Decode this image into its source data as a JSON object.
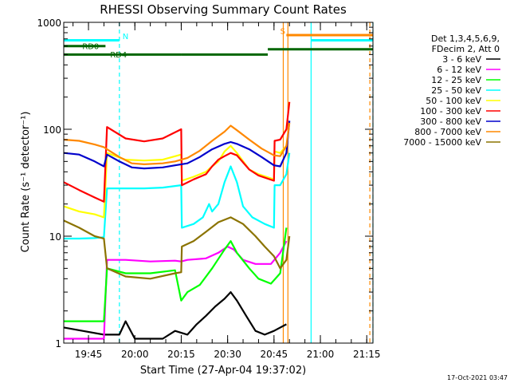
{
  "chart_data": {
    "type": "line",
    "title": "RHESSI Observing Summary Count Rates",
    "xlabel": "Start Time (27-Apr-04 19:37:02)",
    "ylabel": "Count Rate (s⁻¹ detector⁻¹)",
    "xlim_minutes": [
      0,
      100
    ],
    "ylim": [
      1,
      1000
    ],
    "yscale": "log",
    "grid": false,
    "legend_position": "right",
    "x_ticks": [
      {
        "minute": 8,
        "label": "19:45"
      },
      {
        "minute": 23,
        "label": "20:00"
      },
      {
        "minute": 38,
        "label": "20:15"
      },
      {
        "minute": 53,
        "label": "20:30"
      },
      {
        "minute": 68,
        "label": "20:45"
      },
      {
        "minute": 83,
        "label": "21:00"
      },
      {
        "minute": 98,
        "label": "21:15"
      }
    ],
    "y_ticks": [
      {
        "value": 1,
        "label": "1"
      },
      {
        "value": 10,
        "label": "10"
      },
      {
        "value": 100,
        "label": "100"
      },
      {
        "value": 1000,
        "label": "1000"
      }
    ],
    "legend_header": [
      "Det 1,3,4,5,6,9,",
      "FDecim 2, Att 0"
    ],
    "footer_date": "17-Oct-2021 03:47",
    "series": [
      {
        "name": "3 - 6 keV",
        "color": "#000000",
        "points": [
          [
            0,
            1.4
          ],
          [
            13,
            1.2
          ],
          [
            18,
            1.2
          ],
          [
            20,
            1.6
          ],
          [
            23,
            1.1
          ],
          [
            32,
            1.1
          ],
          [
            36,
            1.3
          ],
          [
            40,
            1.2
          ],
          [
            43,
            1.5
          ],
          [
            46,
            1.8
          ],
          [
            49,
            2.2
          ],
          [
            52,
            2.6
          ],
          [
            54,
            3.0
          ],
          [
            56,
            2.5
          ],
          [
            59,
            1.8
          ],
          [
            62,
            1.3
          ],
          [
            65,
            1.2
          ],
          [
            68,
            1.3
          ],
          [
            72,
            1.5
          ]
        ]
      },
      {
        "name": "6 - 12 keV",
        "color": "#ff00ff",
        "points": [
          [
            0,
            1.1
          ],
          [
            13,
            1.1
          ],
          [
            14,
            6.0
          ],
          [
            20,
            6.0
          ],
          [
            28,
            5.8
          ],
          [
            36,
            5.9
          ],
          [
            38,
            5.8
          ],
          [
            40,
            6.0
          ],
          [
            46,
            6.2
          ],
          [
            50,
            7.0
          ],
          [
            53,
            8.0
          ],
          [
            55,
            7.5
          ],
          [
            58,
            6.0
          ],
          [
            62,
            5.5
          ],
          [
            67,
            5.5
          ],
          [
            70,
            7.0
          ],
          [
            72,
            9.0
          ]
        ]
      },
      {
        "name": "12 - 25 keV",
        "color": "#00ff00",
        "points": [
          [
            0,
            1.6
          ],
          [
            13,
            1.6
          ],
          [
            14,
            5.0
          ],
          [
            20,
            4.5
          ],
          [
            28,
            4.5
          ],
          [
            36,
            4.8
          ],
          [
            38,
            2.5
          ],
          [
            40,
            3.0
          ],
          [
            44,
            3.5
          ],
          [
            48,
            5.0
          ],
          [
            52,
            7.5
          ],
          [
            54,
            9.0
          ],
          [
            56,
            7.0
          ],
          [
            60,
            5.0
          ],
          [
            63,
            4.0
          ],
          [
            67,
            3.6
          ],
          [
            70,
            4.5
          ],
          [
            72,
            12
          ]
        ]
      },
      {
        "name": "25 - 50 keV",
        "color": "#00ffff",
        "points": [
          [
            0,
            9.5
          ],
          [
            5,
            9.5
          ],
          [
            10,
            9.6
          ],
          [
            13,
            9.8
          ],
          [
            14,
            28
          ],
          [
            20,
            28
          ],
          [
            26,
            28
          ],
          [
            32,
            28.5
          ],
          [
            38,
            30
          ],
          [
            38.2,
            12
          ],
          [
            42,
            13
          ],
          [
            45,
            15
          ],
          [
            47,
            20
          ],
          [
            48,
            17
          ],
          [
            50,
            20
          ],
          [
            52,
            32
          ],
          [
            54,
            45
          ],
          [
            56,
            32
          ],
          [
            58,
            19
          ],
          [
            61,
            15
          ],
          [
            65,
            13
          ],
          [
            68,
            12
          ],
          [
            68.2,
            30
          ],
          [
            70,
            30
          ],
          [
            72,
            38
          ],
          [
            73,
            60
          ]
        ]
      },
      {
        "name": "50 - 100 keV",
        "color": "#ffff00",
        "points": [
          [
            0,
            19
          ],
          [
            5,
            17
          ],
          [
            10,
            16
          ],
          [
            13,
            15
          ],
          [
            14,
            60
          ],
          [
            20,
            52
          ],
          [
            26,
            51
          ],
          [
            32,
            52
          ],
          [
            38,
            58
          ],
          [
            38.2,
            33
          ],
          [
            42,
            36
          ],
          [
            46,
            40
          ],
          [
            48,
            45
          ],
          [
            50,
            50
          ],
          [
            52,
            62
          ],
          [
            54,
            70
          ],
          [
            56,
            60
          ],
          [
            60,
            42
          ],
          [
            63,
            38
          ],
          [
            68,
            34
          ],
          [
            68.2,
            62
          ],
          [
            70,
            60
          ],
          [
            72,
            70
          ]
        ]
      },
      {
        "name": "100 - 300 keV",
        "color": "#ff0000",
        "points": [
          [
            0,
            32
          ],
          [
            5,
            27
          ],
          [
            10,
            23
          ],
          [
            13,
            21
          ],
          [
            14,
            105
          ],
          [
            20,
            82
          ],
          [
            26,
            77
          ],
          [
            32,
            82
          ],
          [
            38,
            100
          ],
          [
            38.2,
            30
          ],
          [
            42,
            34
          ],
          [
            46,
            38
          ],
          [
            48,
            45
          ],
          [
            50,
            52
          ],
          [
            52,
            56
          ],
          [
            54,
            60
          ],
          [
            56,
            57
          ],
          [
            60,
            42
          ],
          [
            63,
            37
          ],
          [
            68,
            33
          ],
          [
            68.2,
            78
          ],
          [
            70,
            80
          ],
          [
            72,
            100
          ],
          [
            73,
            180
          ]
        ]
      },
      {
        "name": "300 - 800 keV",
        "color": "#0000cc",
        "points": [
          [
            0,
            60
          ],
          [
            5,
            58
          ],
          [
            10,
            50
          ],
          [
            13,
            45
          ],
          [
            14,
            58
          ],
          [
            18,
            50
          ],
          [
            22,
            44
          ],
          [
            26,
            43
          ],
          [
            32,
            44
          ],
          [
            36,
            46
          ],
          [
            40,
            48
          ],
          [
            44,
            55
          ],
          [
            48,
            65
          ],
          [
            52,
            73
          ],
          [
            54,
            76
          ],
          [
            56,
            73
          ],
          [
            60,
            65
          ],
          [
            64,
            55
          ],
          [
            68,
            46
          ],
          [
            70,
            45
          ],
          [
            72,
            60
          ],
          [
            73,
            120
          ]
        ]
      },
      {
        "name": "800 - 7000 keV",
        "color": "#ff8800",
        "points": [
          [
            0,
            80
          ],
          [
            5,
            78
          ],
          [
            10,
            72
          ],
          [
            13,
            68
          ],
          [
            14,
            65
          ],
          [
            18,
            55
          ],
          [
            22,
            48
          ],
          [
            26,
            47
          ],
          [
            32,
            48
          ],
          [
            36,
            50
          ],
          [
            40,
            54
          ],
          [
            44,
            63
          ],
          [
            48,
            78
          ],
          [
            52,
            95
          ],
          [
            54,
            108
          ],
          [
            56,
            98
          ],
          [
            60,
            80
          ],
          [
            64,
            66
          ],
          [
            68,
            57
          ],
          [
            70,
            56
          ],
          [
            72,
            70
          ],
          [
            73,
            115
          ]
        ]
      },
      {
        "name": "7000 - 15000 keV",
        "color": "#8b7300",
        "points": [
          [
            0,
            14
          ],
          [
            5,
            12
          ],
          [
            10,
            10
          ],
          [
            13,
            9.5
          ],
          [
            14,
            5.0
          ],
          [
            20,
            4.2
          ],
          [
            28,
            4.0
          ],
          [
            36,
            4.5
          ],
          [
            38,
            4.6
          ],
          [
            38.2,
            8
          ],
          [
            42,
            9
          ],
          [
            46,
            11
          ],
          [
            50,
            13.5
          ],
          [
            54,
            15
          ],
          [
            58,
            13
          ],
          [
            62,
            10
          ],
          [
            65,
            8
          ],
          [
            68,
            6.5
          ],
          [
            70,
            5.0
          ],
          [
            72,
            6.0
          ],
          [
            73,
            10
          ]
        ]
      }
    ],
    "annotations": [
      {
        "text": "RD0",
        "color": "#006600",
        "segments": [
          [
            0,
            13.5,
            600
          ]
        ],
        "label_minute": 6,
        "label_value": 560
      },
      {
        "text": "RD4",
        "color": "#006600",
        "segments": [
          [
            0,
            38,
            500
          ],
          [
            38,
            66,
            500
          ],
          [
            66,
            100,
            560
          ]
        ],
        "label_minute": 15,
        "label_value": 470
      },
      {
        "text": "N",
        "color": "#00ffff",
        "segments": [
          [
            0,
            18,
            680
          ],
          [
            80,
            100,
            680
          ]
        ],
        "label_minute": 19,
        "label_value": 700
      },
      {
        "text": "S",
        "color": "#ff8800",
        "segments": [
          [
            72,
            100,
            760
          ]
        ],
        "label_minute": 70,
        "label_value": 780
      }
    ],
    "vertical_markers": [
      {
        "minute": 18,
        "color": "#00ffff",
        "dashed": true
      },
      {
        "minute": 71,
        "color": "#ff8800",
        "dashed": false
      },
      {
        "minute": 72.5,
        "color": "#ff8800",
        "dashed": false
      },
      {
        "minute": 80,
        "color": "#00ffff",
        "dashed": false
      },
      {
        "minute": 99,
        "color": "#ff8800",
        "dashed": true
      },
      {
        "minute": 100,
        "color": "#00ffff",
        "dashed": true
      }
    ]
  }
}
